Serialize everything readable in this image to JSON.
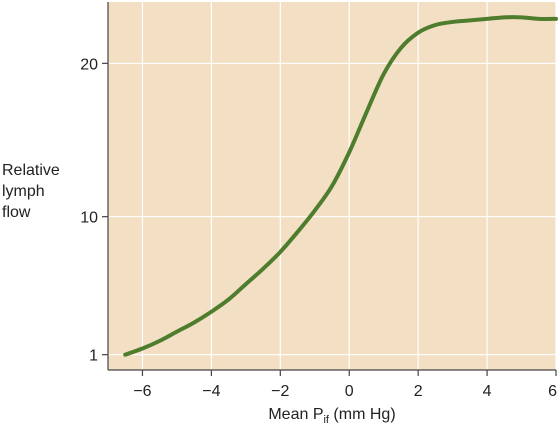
{
  "chart_data": {
    "type": "line",
    "title": "",
    "xlabel": "Mean P",
    "xlabel_subscript": "if",
    "xlabel_unit": " (mm Hg)",
    "ylabel_lines": [
      "Relative",
      "lymph",
      "flow"
    ],
    "xlim": [
      -7,
      6
    ],
    "ylim": [
      0,
      24
    ],
    "x_ticks": [
      -6,
      -4,
      -2,
      0,
      2,
      4,
      6
    ],
    "x_tick_labels": [
      "−6",
      "−4",
      "−2",
      "0",
      "2",
      "4",
      "6"
    ],
    "y_ticks": [
      1,
      10,
      20
    ],
    "y_tick_labels": [
      "1",
      "10",
      "20"
    ],
    "grid": true,
    "colors": {
      "background": "#f3dfc4",
      "grid": "#ffffff",
      "line": "#4e7d2e",
      "axis": "#444444"
    },
    "series": [
      {
        "x": [
          -6.5,
          -6.0,
          -5.5,
          -5.0,
          -4.5,
          -4.0,
          -3.5,
          -3.0,
          -2.5,
          -2.0,
          -1.5,
          -1.0,
          -0.5,
          0.0,
          0.5,
          1.0,
          1.5,
          2.0,
          2.5,
          3.0,
          3.5,
          4.0,
          4.5,
          5.0,
          5.5,
          6.0
        ],
        "y": [
          1.0,
          1.4,
          1.9,
          2.5,
          3.1,
          3.8,
          4.6,
          5.6,
          6.6,
          7.7,
          9.0,
          10.4,
          12.0,
          14.2,
          16.8,
          19.3,
          21.0,
          22.0,
          22.5,
          22.7,
          22.8,
          22.9,
          23.0,
          23.0,
          22.9,
          22.9
        ]
      }
    ]
  }
}
